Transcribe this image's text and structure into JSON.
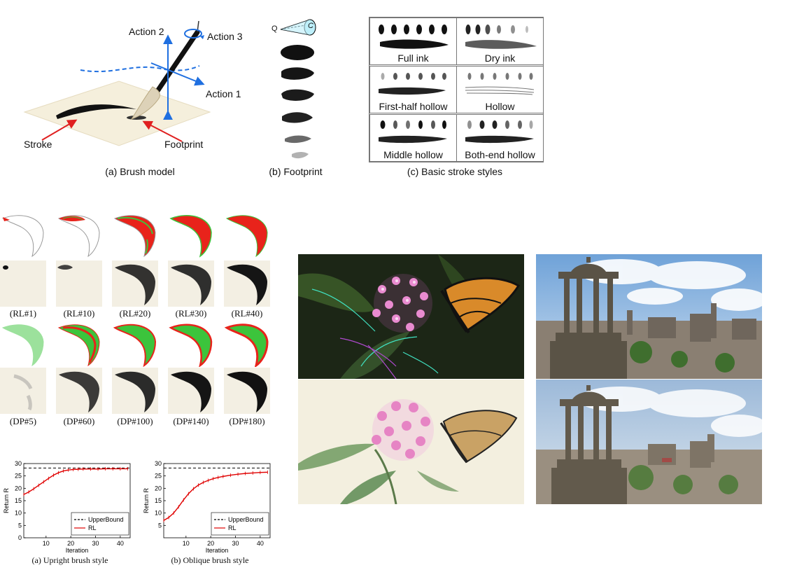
{
  "fig_a": {
    "caption": "(a) Brush model",
    "action1": "Action 1",
    "action2": "Action 2",
    "action3": "Action 3",
    "stroke": "Stroke",
    "footprint": "Footprint"
  },
  "fig_b": {
    "caption": "(b) Footprint",
    "q": "Q",
    "c": "C"
  },
  "fig_c": {
    "caption": "(c) Basic stroke styles",
    "styles": [
      "Full ink",
      "Dry ink",
      "First-half hollow",
      "Hollow",
      "Middle hollow",
      "Both-end hollow"
    ]
  },
  "rl_labels": [
    "(RL#1)",
    "(RL#10)",
    "(RL#20)",
    "(RL#30)",
    "(RL#40)"
  ],
  "dp_labels": [
    "(DP#5)",
    "(DP#60)",
    "(DP#100)",
    "(DP#140)",
    "(DP#180)"
  ],
  "chart_data": [
    {
      "type": "line",
      "title": "(a) Upright brush style",
      "xlabel": "Iteration",
      "ylabel": "Return R",
      "xlim": [
        1,
        44
      ],
      "ylim": [
        0,
        30
      ],
      "xticks": [
        10,
        20,
        30,
        40
      ],
      "yticks": [
        0,
        5,
        10,
        15,
        20,
        25,
        30
      ],
      "legend": "bottom-right",
      "series": [
        {
          "name": "UpperBound",
          "style": "dashed",
          "color": "#000000",
          "x": [
            1,
            44
          ],
          "y": [
            28.2,
            28.2
          ]
        },
        {
          "name": "RL",
          "style": "solid",
          "color": "#e00000",
          "x": [
            1,
            3,
            5,
            7,
            9,
            11,
            13,
            15,
            17,
            19,
            21,
            23,
            25,
            28,
            31,
            34,
            37,
            40,
            43
          ],
          "y": [
            17.5,
            18.5,
            19.8,
            21.2,
            22.6,
            24.0,
            25.3,
            26.3,
            27.0,
            27.4,
            27.6,
            27.7,
            27.8,
            27.8,
            27.8,
            27.9,
            27.9,
            27.9,
            27.9
          ]
        }
      ]
    },
    {
      "type": "line",
      "title": "(b) Oblique brush style",
      "xlabel": "Iteration",
      "ylabel": "Return R",
      "xlim": [
        1,
        44
      ],
      "ylim": [
        0,
        30
      ],
      "xticks": [
        10,
        20,
        30,
        40
      ],
      "yticks": [
        5,
        10,
        15,
        20,
        25,
        30
      ],
      "legend": "bottom-right",
      "series": [
        {
          "name": "UpperBound",
          "style": "dashed",
          "color": "#000000",
          "x": [
            1,
            44
          ],
          "y": [
            28.2,
            28.2
          ]
        },
        {
          "name": "RL",
          "style": "solid",
          "color": "#e00000",
          "x": [
            1,
            3,
            5,
            7,
            9,
            11,
            13,
            15,
            17,
            19,
            21,
            23,
            25,
            28,
            31,
            34,
            37,
            40,
            43
          ],
          "y": [
            7.0,
            8.2,
            10.0,
            12.5,
            15.3,
            17.8,
            19.8,
            21.3,
            22.4,
            23.2,
            23.9,
            24.4,
            24.8,
            25.3,
            25.7,
            26.0,
            26.2,
            26.4,
            26.5
          ]
        }
      ]
    }
  ],
  "colors": {
    "arrow_blue": "#1f6fe0",
    "arrow_red": "#e02020",
    "paper": "#f5efdc",
    "ink": "#111111",
    "fill_red": "#e8231b",
    "fill_green": "#3cc43c"
  }
}
